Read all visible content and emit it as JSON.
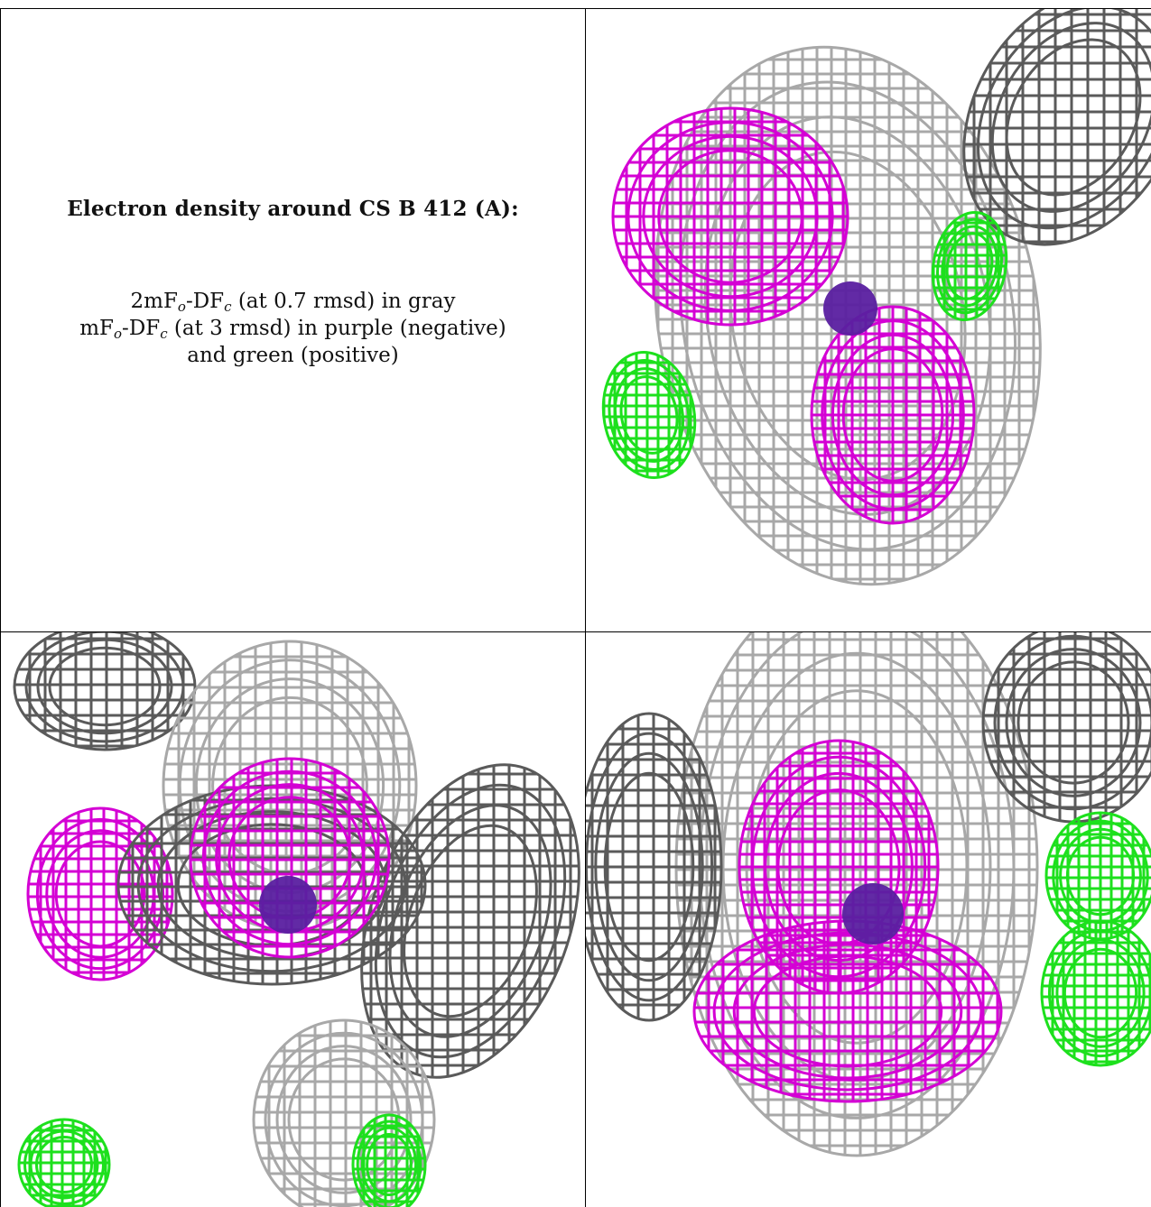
{
  "caption": {
    "title": "Electron density around CS B 412 (A):",
    "line1": {
      "a": "2mF",
      "b": "o",
      "c": "-DF",
      "d": "c",
      "e": " (at 0.7 rmsd) in gray"
    },
    "line2": {
      "a": "mF",
      "b": "o",
      "c": "-DF",
      "d": "c",
      "e": " (at 3 rmsd) in purple (negative)"
    },
    "line3": "and green (positive)"
  },
  "colors": {
    "gray_mesh": "#a8a8a8",
    "dark_mesh": "#5a5a5a",
    "negative_density": "#d400d4",
    "positive_density": "#1de01d",
    "ion": "#5a1fa0",
    "border": "#000000"
  },
  "panels": [
    "view-top-right",
    "view-bottom-left",
    "view-bottom-right"
  ]
}
